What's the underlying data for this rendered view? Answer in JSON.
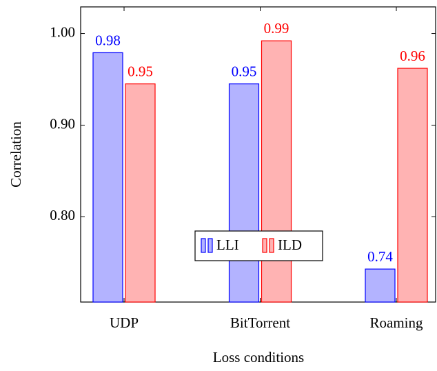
{
  "chart_data": {
    "type": "bar",
    "x_label": "Loss conditions",
    "y_label": "Correlation",
    "categories": [
      "UDP",
      "BitTorrent",
      "Roaming"
    ],
    "series": [
      {
        "name": "LLI",
        "color": "#0000ff",
        "fill": "#b3b3ff",
        "values": [
          0.979,
          0.945,
          0.743
        ],
        "value_labels": [
          "0.98",
          "0.95",
          "0.74"
        ]
      },
      {
        "name": "ILD",
        "color": "#ff0000",
        "fill": "#ffb3b3",
        "values": [
          0.945,
          0.992,
          0.962
        ],
        "value_labels": [
          "0.95",
          "0.99",
          "0.96"
        ]
      }
    ],
    "ylim": [
      0.707,
      1.029
    ],
    "yticks": [
      {
        "value": 0.8,
        "label": "0.80"
      },
      {
        "value": 0.9,
        "label": "0.90"
      },
      {
        "value": 1.0,
        "label": "1.00"
      }
    ],
    "legend": "center"
  }
}
